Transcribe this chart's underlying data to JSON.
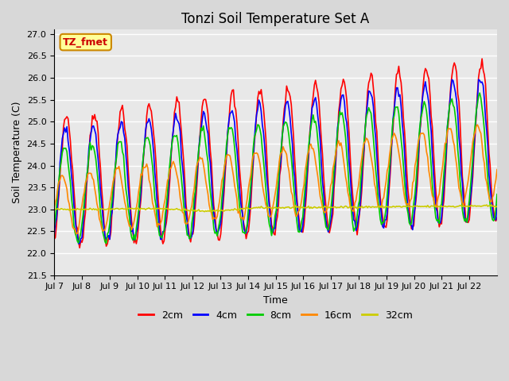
{
  "title": "Tonzi Soil Temperature Set A",
  "xlabel": "Time",
  "ylabel": "Soil Temperature (C)",
  "ylim": [
    21.5,
    27.1
  ],
  "yticks": [
    21.5,
    22.0,
    22.5,
    23.0,
    23.5,
    24.0,
    24.5,
    25.0,
    25.5,
    26.0,
    26.5,
    27.0
  ],
  "xtick_labels": [
    "Jul 7",
    "Jul 8",
    "Jul 9",
    "Jul 10",
    "Jul 11",
    "Jul 12",
    "Jul 13",
    "Jul 14",
    "Jul 15",
    "Jul 16",
    "Jul 17",
    "Jul 18",
    "Jul 19",
    "Jul 20",
    "Jul 21",
    "Jul 22"
  ],
  "legend_label": "TZ_fmet",
  "series_colors": {
    "2cm": "#ff0000",
    "4cm": "#0000ff",
    "8cm": "#00cc00",
    "16cm": "#ff8800",
    "32cm": "#cccc00"
  },
  "fig_facecolor": "#d8d8d8",
  "ax_facecolor": "#e8e8e8",
  "legend_box_color": "#ffff99",
  "legend_box_edge": "#cc8800",
  "n_days": 16,
  "pts_per_day": 24
}
